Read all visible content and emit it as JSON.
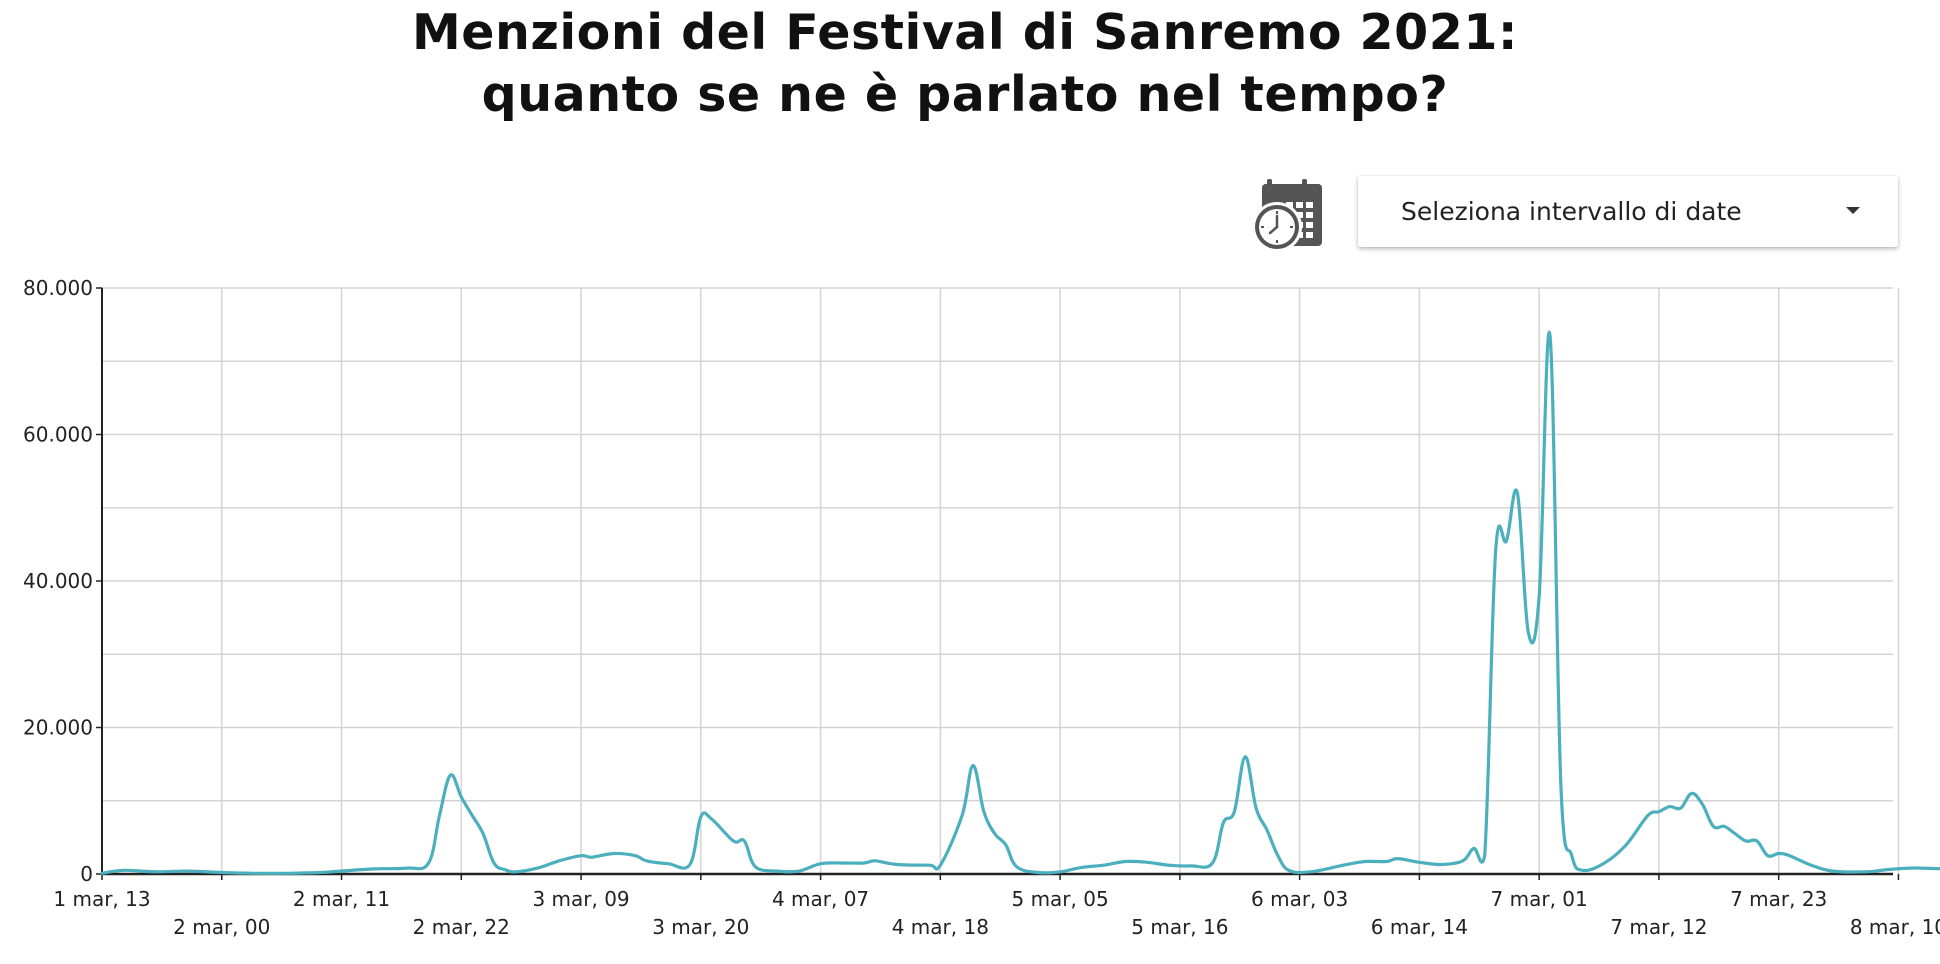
{
  "header": {
    "title_line1": "Menzioni del Festival di Sanremo 2021:",
    "title_line2": "quanto se ne è parlato nel tempo?"
  },
  "controls": {
    "date_range_label": "Seleziona intervallo di date",
    "calendar_icon": "calendar-clock-icon"
  },
  "chart_data": {
    "type": "line",
    "title": "Menzioni del Festival di Sanremo 2021: quanto se ne è parlato nel tempo?",
    "xlabel": "",
    "ylabel": "",
    "x_unit": "hours",
    "x_start": "1 mar, 13",
    "ylim": [
      0,
      80000
    ],
    "yticks": [
      0,
      20000,
      40000,
      60000,
      80000
    ],
    "ytick_labels": [
      "0",
      "20.000",
      "40.000",
      "60.000",
      "80.000"
    ],
    "xticks": [
      {
        "label": "1 mar, 13",
        "row": 0
      },
      {
        "label": "2 mar, 00",
        "row": 1
      },
      {
        "label": "2 mar, 11",
        "row": 0
      },
      {
        "label": "2 mar, 22",
        "row": 1
      },
      {
        "label": "3 mar, 09",
        "row": 0
      },
      {
        "label": "3 mar, 20",
        "row": 1
      },
      {
        "label": "4 mar, 07",
        "row": 0
      },
      {
        "label": "4 mar, 18",
        "row": 1
      },
      {
        "label": "5 mar, 05",
        "row": 0
      },
      {
        "label": "5 mar, 16",
        "row": 1
      },
      {
        "label": "6 mar, 03",
        "row": 0
      },
      {
        "label": "6 mar, 14",
        "row": 1
      },
      {
        "label": "7 mar, 01",
        "row": 0
      },
      {
        "label": "7 mar, 12",
        "row": 1
      },
      {
        "label": "7 mar, 23",
        "row": 0
      },
      {
        "label": "8 mar, 10",
        "row": 1
      }
    ],
    "grid": true,
    "line_color": "#4bafbe",
    "series": [
      {
        "points": [
          [
            "1 mar, 13",
            100
          ],
          [
            "1 mar, 15",
            500
          ],
          [
            "1 mar, 18",
            300
          ],
          [
            "1 mar, 21",
            400
          ],
          [
            "2 mar, 00",
            200
          ],
          [
            "2 mar, 03",
            100
          ],
          [
            "2 mar, 06",
            100
          ],
          [
            "2 mar, 09",
            200
          ],
          [
            "2 mar, 11",
            400
          ],
          [
            "2 mar, 14",
            700
          ],
          [
            "2 mar, 17",
            800
          ],
          [
            "2 mar, 19",
            1500
          ],
          [
            "2 mar, 20",
            8000
          ],
          [
            "2 mar, 21",
            13500
          ],
          [
            "2 mar, 22",
            10500
          ],
          [
            "2 mar, 23",
            8000
          ],
          [
            "3 mar, 00",
            5500
          ],
          [
            "3 mar, 01",
            1500
          ],
          [
            "3 mar, 02",
            600
          ],
          [
            "3 mar, 03",
            300
          ],
          [
            "3 mar, 05",
            800
          ],
          [
            "3 mar, 07",
            1800
          ],
          [
            "3 mar, 09",
            2500
          ],
          [
            "3 mar, 10",
            2300
          ],
          [
            "3 mar, 12",
            2800
          ],
          [
            "3 mar, 14",
            2500
          ],
          [
            "3 mar, 15",
            1800
          ],
          [
            "3 mar, 17",
            1400
          ],
          [
            "3 mar, 19",
            1300
          ],
          [
            "3 mar, 20",
            7800
          ],
          [
            "3 mar, 21",
            7500
          ],
          [
            "3 mar, 23",
            4500
          ],
          [
            "4 mar, 00",
            4500
          ],
          [
            "4 mar, 01",
            1000
          ],
          [
            "4 mar, 03",
            400
          ],
          [
            "4 mar, 05",
            400
          ],
          [
            "4 mar, 07",
            1400
          ],
          [
            "4 mar, 09",
            1500
          ],
          [
            "4 mar, 11",
            1500
          ],
          [
            "4 mar, 12",
            1800
          ],
          [
            "4 mar, 14",
            1300
          ],
          [
            "4 mar, 17",
            1200
          ],
          [
            "4 mar, 18",
            1200
          ],
          [
            "4 mar, 20",
            8000
          ],
          [
            "4 mar, 21",
            14800
          ],
          [
            "4 mar, 22",
            8500
          ],
          [
            "4 mar, 23",
            5500
          ],
          [
            "5 mar, 00",
            4000
          ],
          [
            "5 mar, 01",
            1000
          ],
          [
            "5 mar, 03",
            200
          ],
          [
            "5 mar, 05",
            300
          ],
          [
            "5 mar, 07",
            900
          ],
          [
            "5 mar, 09",
            1200
          ],
          [
            "5 mar, 11",
            1700
          ],
          [
            "5 mar, 13",
            1600
          ],
          [
            "5 mar, 15",
            1200
          ],
          [
            "5 mar, 17",
            1100
          ],
          [
            "5 mar, 19",
            1500
          ],
          [
            "5 mar, 20",
            7000
          ],
          [
            "5 mar, 21",
            8500
          ],
          [
            "5 mar, 22",
            16000
          ],
          [
            "5 mar, 23",
            9000
          ],
          [
            "6 mar, 00",
            6000
          ],
          [
            "6 mar, 01",
            2500
          ],
          [
            "6 mar, 02",
            500
          ],
          [
            "6 mar, 04",
            300
          ],
          [
            "6 mar, 07",
            1200
          ],
          [
            "6 mar, 09",
            1700
          ],
          [
            "6 mar, 11",
            1700
          ],
          [
            "6 mar, 12",
            2100
          ],
          [
            "6 mar, 14",
            1600
          ],
          [
            "6 mar, 16",
            1300
          ],
          [
            "6 mar, 18",
            1800
          ],
          [
            "6 mar, 19",
            3500
          ],
          [
            "6 mar, 20",
            2500
          ],
          [
            "6 mar, 21",
            44000
          ],
          [
            "6 mar, 22",
            45500
          ],
          [
            "6 mar, 23",
            52000
          ],
          [
            "7 mar, 00",
            33000
          ],
          [
            "7 mar, 01",
            38000
          ],
          [
            "7 mar, 02",
            73500
          ],
          [
            "7 mar, 03",
            12000
          ],
          [
            "7 mar, 04",
            2500
          ],
          [
            "7 mar, 05",
            500
          ],
          [
            "7 mar, 07",
            1500
          ],
          [
            "7 mar, 09",
            4000
          ],
          [
            "7 mar, 11",
            8000
          ],
          [
            "7 mar, 12",
            8500
          ],
          [
            "7 mar, 13",
            9200
          ],
          [
            "7 mar, 14",
            9000
          ],
          [
            "7 mar, 15",
            11000
          ],
          [
            "7 mar, 16",
            9500
          ],
          [
            "7 mar, 17",
            6500
          ],
          [
            "7 mar, 18",
            6500
          ],
          [
            "7 mar, 19",
            5500
          ],
          [
            "7 mar, 20",
            4500
          ],
          [
            "7 mar, 21",
            4500
          ],
          [
            "7 mar, 22",
            2500
          ],
          [
            "7 mar, 23",
            2800
          ],
          [
            "8 mar, 00",
            2500
          ],
          [
            "8 mar, 02",
            1200
          ],
          [
            "8 mar, 04",
            400
          ],
          [
            "8 mar, 07",
            300
          ],
          [
            "8 mar, 09",
            600
          ],
          [
            "8 mar, 11",
            800
          ],
          [
            "8 mar, 12",
            800
          ],
          [
            "8 mar, 14",
            700
          ],
          [
            "8 mar, 15",
            400
          ]
        ]
      }
    ]
  }
}
